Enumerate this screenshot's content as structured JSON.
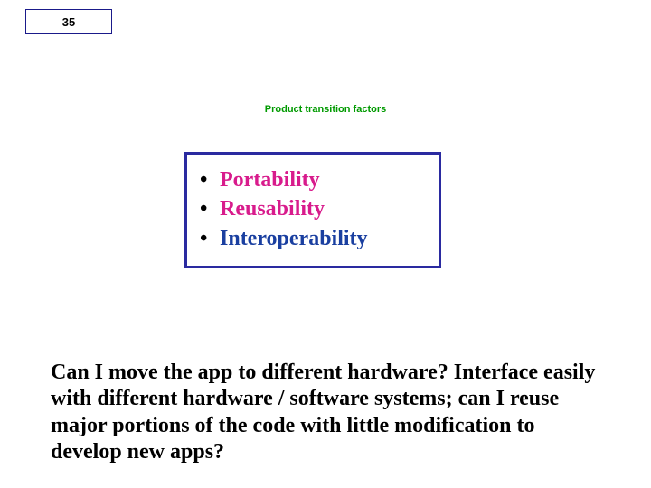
{
  "slide_number": "35",
  "subtitle": {
    "text": "Product transition factors",
    "color": "#009a00"
  },
  "bullet_box": {
    "border_color": "#2a2aa0",
    "items": [
      {
        "text": "Portability",
        "color": "#d81b8c"
      },
      {
        "text": "Reusability",
        "color": "#d81b8c"
      },
      {
        "text": "Interoperability",
        "color": "#1a3fa0"
      }
    ]
  },
  "paragraph": "Can I move the app to different hardware? Interface easily with different hardware / software systems;  can I reuse major portions of the code with little modification to develop new apps?"
}
